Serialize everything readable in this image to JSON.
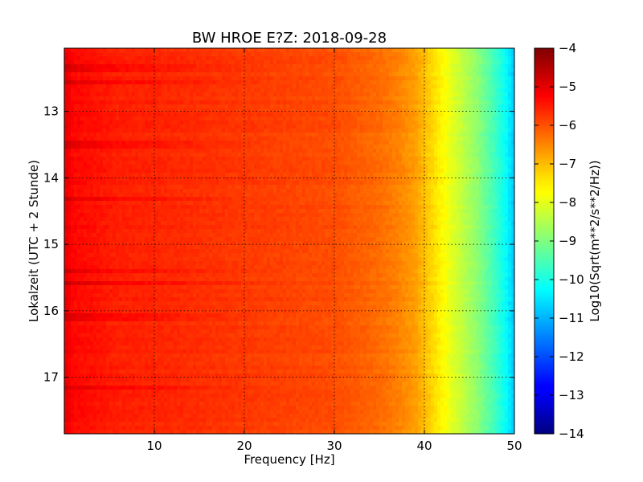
{
  "chart_data": {
    "type": "heatmap",
    "title": "BW HROE E?Z: 2018-09-28",
    "xlabel": "Frequency [Hz]",
    "ylabel": "Lokalzeit (UTC + 2 Stunde)",
    "xlim": [
      0,
      50
    ],
    "ylim": [
      12.05,
      17.85
    ],
    "y_inverted": true,
    "x_ticks": [
      10,
      20,
      30,
      40,
      50
    ],
    "x_tick_labels": [
      "10",
      "20",
      "30",
      "40",
      "50"
    ],
    "y_ticks": [
      13,
      14,
      15,
      16,
      17
    ],
    "y_tick_labels": [
      "13",
      "14",
      "15",
      "16",
      "17"
    ],
    "grid": true,
    "colormap": "jet",
    "colorbar": {
      "label": "Log10(Sqrt(m**2/s**2/Hz))",
      "range": [
        -14,
        -4
      ],
      "ticks": [
        -4,
        -5,
        -6,
        -7,
        -8,
        -9,
        -10,
        -11,
        -12,
        -13,
        -14
      ],
      "tick_labels": [
        "−4",
        "−5",
        "−6",
        "−7",
        "−8",
        "−9",
        "−10",
        "−11",
        "−12",
        "−13",
        "−14"
      ]
    },
    "spectrum_profile": {
      "frequency_hz": [
        0,
        1,
        3,
        6,
        10,
        20,
        30,
        35,
        37,
        39,
        40,
        41,
        42,
        43,
        44,
        45,
        46,
        47,
        48,
        49,
        50
      ],
      "log10_amplitude": [
        -5.0,
        -5.3,
        -5.4,
        -5.55,
        -5.6,
        -5.8,
        -6.0,
        -6.3,
        -6.5,
        -6.8,
        -7.1,
        -7.4,
        -7.7,
        -8.0,
        -8.3,
        -8.6,
        -8.9,
        -9.3,
        -9.7,
        -10.2,
        -10.8
      ]
    },
    "high_amplitude_times": [
      12.35,
      12.55,
      13.5,
      14.3,
      15.4,
      15.6,
      16.1,
      17.15
    ]
  }
}
